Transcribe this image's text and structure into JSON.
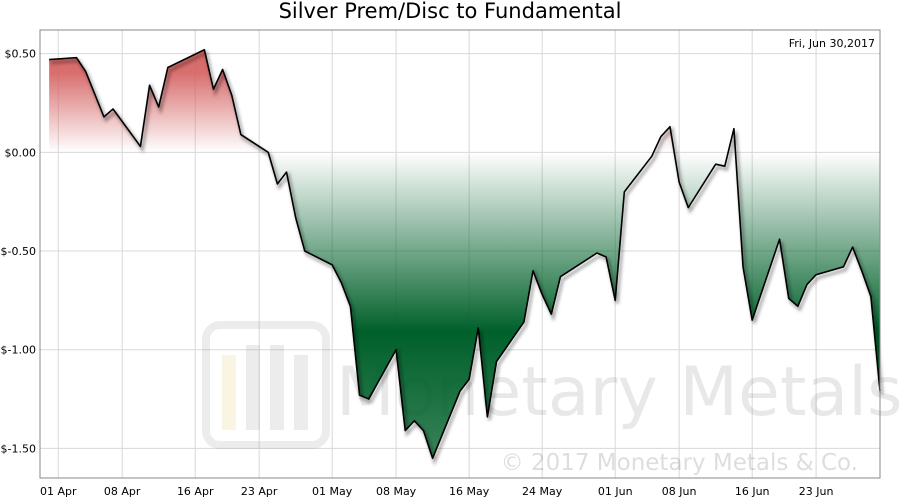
{
  "chart_data": {
    "type": "area",
    "title": "Silver Prem/Disc to Fundamental",
    "annotation": "Fri, Jun 30,2017",
    "watermark": "Monetary Metals",
    "copyright": "© 2017 Monetary Metals & Co.",
    "positive_color": "#d45f5f",
    "negative_color": "#00602a",
    "line_color": "#000000",
    "grid": true,
    "x": [
      "2017-03-31",
      "2017-04-03",
      "2017-04-04",
      "2017-04-06",
      "2017-04-07",
      "2017-04-10",
      "2017-04-11",
      "2017-04-12",
      "2017-04-13",
      "2017-04-17",
      "2017-04-18",
      "2017-04-19",
      "2017-04-20",
      "2017-04-21",
      "2017-04-24",
      "2017-04-25",
      "2017-04-26",
      "2017-04-27",
      "2017-04-28",
      "2017-05-01",
      "2017-05-02",
      "2017-05-03",
      "2017-05-04",
      "2017-05-05",
      "2017-05-08",
      "2017-05-09",
      "2017-05-10",
      "2017-05-11",
      "2017-05-12",
      "2017-05-15",
      "2017-05-16",
      "2017-05-17",
      "2017-05-18",
      "2017-05-19",
      "2017-05-22",
      "2017-05-23",
      "2017-05-24",
      "2017-05-25",
      "2017-05-26",
      "2017-05-30",
      "2017-05-31",
      "2017-06-01",
      "2017-06-02",
      "2017-06-05",
      "2017-06-06",
      "2017-06-07",
      "2017-06-08",
      "2017-06-09",
      "2017-06-12",
      "2017-06-13",
      "2017-06-14",
      "2017-06-15",
      "2017-06-16",
      "2017-06-19",
      "2017-06-20",
      "2017-06-21",
      "2017-06-22",
      "2017-06-23",
      "2017-06-26",
      "2017-06-27",
      "2017-06-28",
      "2017-06-29",
      "2017-06-30"
    ],
    "values": [
      0.47,
      0.48,
      0.41,
      0.18,
      0.22,
      0.03,
      0.34,
      0.23,
      0.43,
      0.52,
      0.32,
      0.42,
      0.29,
      0.09,
      0.0,
      -0.16,
      -0.1,
      -0.33,
      -0.5,
      -0.57,
      -0.66,
      -0.78,
      -1.23,
      -1.25,
      -1.0,
      -1.41,
      -1.36,
      -1.41,
      -1.55,
      -1.21,
      -1.15,
      -0.89,
      -1.34,
      -1.06,
      -0.86,
      -0.6,
      -0.72,
      -0.82,
      -0.63,
      -0.51,
      -0.53,
      -0.75,
      -0.2,
      -0.02,
      0.08,
      0.13,
      -0.15,
      -0.28,
      -0.06,
      -0.07,
      0.12,
      -0.58,
      -0.85,
      -0.44,
      -0.74,
      -0.78,
      -0.67,
      -0.62,
      -0.58,
      -0.48,
      -0.6,
      -0.73,
      -1.21
    ],
    "xlim": [
      "2017-03-30",
      "2017-06-30"
    ],
    "xticks": [
      {
        "value": "2017-04-01",
        "label": "01 Apr"
      },
      {
        "value": "2017-04-08",
        "label": "08 Apr"
      },
      {
        "value": "2017-04-16",
        "label": "16 Apr"
      },
      {
        "value": "2017-04-23",
        "label": "23 Apr"
      },
      {
        "value": "2017-05-01",
        "label": "01 May"
      },
      {
        "value": "2017-05-08",
        "label": "08 May"
      },
      {
        "value": "2017-05-16",
        "label": "16 May"
      },
      {
        "value": "2017-05-24",
        "label": "24 May"
      },
      {
        "value": "2017-06-01",
        "label": "01 Jun"
      },
      {
        "value": "2017-06-08",
        "label": "08 Jun"
      },
      {
        "value": "2017-06-16",
        "label": "16 Jun"
      },
      {
        "value": "2017-06-23",
        "label": "23 Jun"
      }
    ],
    "ylim": [
      -1.65,
      0.62
    ],
    "yticks": [
      {
        "value": 0.5,
        "label": "$0.50"
      },
      {
        "value": 0,
        "label": "$0.00"
      },
      {
        "value": -0.5,
        "label": "$-0.50"
      },
      {
        "value": -1,
        "label": "$-1.00"
      },
      {
        "value": -1.5,
        "label": "$-1.50"
      }
    ]
  }
}
